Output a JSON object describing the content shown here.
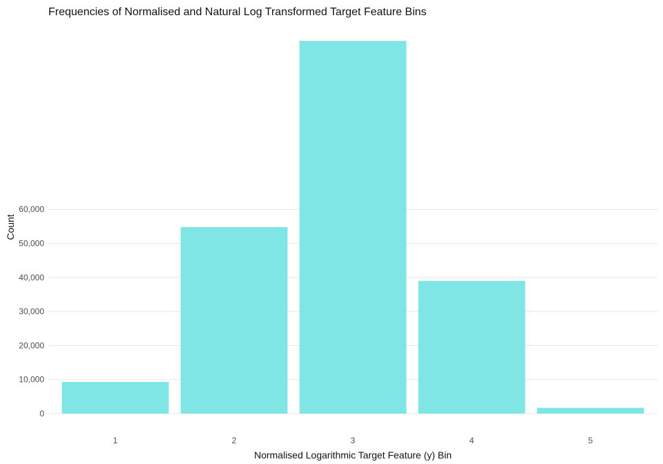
{
  "chart_data": {
    "type": "bar",
    "title": "Frequencies of Normalised and Natural Log Transformed Target Feature Bins",
    "xlabel": "Normalised Logarithmic Target Feature (y) Bin",
    "ylabel": "Count",
    "categories": [
      "1",
      "2",
      "3",
      "4",
      "5"
    ],
    "values": [
      9300,
      54800,
      109500,
      39000,
      1700
    ],
    "yticks": [
      0,
      10000,
      20000,
      30000,
      40000,
      50000,
      60000
    ],
    "ytick_labels": [
      "0",
      "10,000",
      "20,000",
      "30,000",
      "40,000",
      "50,000",
      "60,000"
    ],
    "bar_color": "#7fe5e5",
    "grid": true,
    "legend": "none"
  }
}
